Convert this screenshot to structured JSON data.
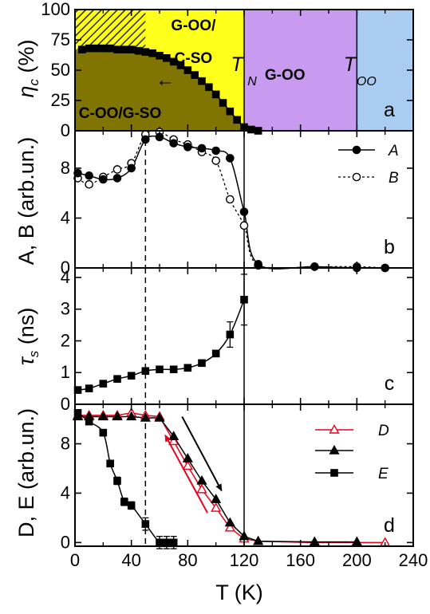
{
  "chart_data": [
    {
      "type": "line",
      "panel": "a",
      "ylabel": "η_c (%)",
      "ylim": [
        0,
        100
      ],
      "yticks": [
        0,
        25,
        50,
        75,
        100
      ],
      "shared_xlim": [
        0,
        240
      ],
      "regions": [
        {
          "label": "C-OO/G-SO",
          "color": "#7f7500"
        },
        {
          "label": "G-OO/ C-SO",
          "line1": "G-OO/",
          "line2": "C-SO",
          "color": "#ffff1c"
        },
        {
          "label": "G-OO",
          "color": "#c89bf0"
        },
        {
          "label": "",
          "color": "#a9cdf0"
        }
      ],
      "temperature_labels": [
        {
          "main": "T",
          "sub": "N",
          "x": 120
        },
        {
          "main": "T",
          "sub": "OO",
          "x": 200
        }
      ],
      "series": [
        {
          "x": [
            5,
            10,
            15,
            20,
            25,
            30,
            35,
            40,
            45,
            50,
            55,
            60,
            65,
            70,
            75,
            80,
            85,
            90,
            95,
            100,
            105,
            110,
            115,
            120,
            125,
            130
          ],
          "y": [
            67,
            68,
            68,
            68,
            68,
            67,
            67,
            67,
            66,
            65,
            64,
            62,
            60,
            57,
            54,
            50,
            46,
            41,
            36,
            30,
            23,
            16,
            9,
            3,
            1,
            0
          ]
        }
      ],
      "annotation": "←"
    },
    {
      "type": "line",
      "panel": "b",
      "ylabel": "A, B (arb.un.)",
      "ylim": [
        0,
        11
      ],
      "yticks": [
        0,
        4,
        8
      ],
      "series": [
        {
          "name": "A",
          "x": [
            2,
            10,
            20,
            30,
            40,
            50,
            60,
            70,
            80,
            90,
            100,
            110,
            120,
            130,
            170,
            200,
            220
          ],
          "y": [
            7.6,
            7.4,
            7.1,
            7.2,
            8.0,
            10.3,
            10.5,
            10.0,
            9.7,
            9.6,
            9.4,
            8.8,
            4.5,
            0.3,
            0.1,
            0.0,
            0.0
          ]
        },
        {
          "name": "B",
          "x": [
            2,
            10,
            20,
            30,
            40,
            50,
            60,
            70,
            80,
            90,
            100,
            110,
            120,
            130,
            170,
            200,
            220
          ],
          "y": [
            7.2,
            6.7,
            7.3,
            7.9,
            8.4,
            10.7,
            10.9,
            10.3,
            9.9,
            9.3,
            8.6,
            5.5,
            3.4,
            0.2,
            0.1,
            0.1,
            0.0
          ]
        }
      ]
    },
    {
      "type": "line",
      "panel": "c",
      "ylabel": "τ_s (ns)",
      "ylim": [
        0,
        4.3
      ],
      "yticks": [
        0,
        1,
        2,
        3,
        4
      ],
      "series": [
        {
          "x": [
            2,
            10,
            20,
            30,
            40,
            50,
            60,
            70,
            80,
            90,
            100,
            110,
            120
          ],
          "y": [
            0.45,
            0.5,
            0.65,
            0.8,
            0.9,
            1.05,
            1.1,
            1.1,
            1.15,
            1.3,
            1.6,
            2.2,
            3.3
          ],
          "err": [
            0.05,
            0.05,
            0.05,
            0.05,
            0.05,
            0.05,
            0.05,
            0.05,
            0.05,
            0.05,
            0.1,
            0.4,
            0.8
          ]
        }
      ]
    },
    {
      "type": "line",
      "panel": "d",
      "ylabel": "D, E (arb.un.)",
      "xlabel": "T (K)",
      "ylim": [
        -0.3,
        11.2
      ],
      "xlim": [
        0,
        240
      ],
      "yticks": [
        0,
        4,
        8
      ],
      "xticks": [
        0,
        40,
        80,
        120,
        160,
        200,
        240
      ],
      "xticklabels": [
        "0",
        "40",
        "80",
        "120",
        "160",
        "200",
        "240"
      ],
      "series": [
        {
          "name": "D",
          "color": "#e8001c",
          "x": [
            2,
            10,
            20,
            30,
            40,
            50,
            60,
            70,
            80,
            90,
            100,
            110,
            120,
            130,
            170,
            200,
            220
          ],
          "y": [
            10.3,
            10.3,
            10.3,
            10.3,
            10.5,
            10.3,
            10.2,
            8.2,
            6.2,
            4.3,
            2.8,
            1.2,
            0.3,
            0.1,
            0.0,
            0.0,
            0.0
          ]
        },
        {
          "name": "",
          "color": "#000000",
          "x": [
            2,
            10,
            20,
            30,
            40,
            50,
            60,
            70,
            80,
            90,
            100,
            110,
            120,
            130,
            170,
            200
          ],
          "y": [
            10.2,
            10.2,
            10.2,
            10.2,
            10.2,
            10.1,
            10.1,
            8.6,
            6.8,
            5.0,
            3.5,
            1.6,
            0.5,
            0.1,
            0.05,
            0.05
          ]
        },
        {
          "name": "E",
          "color": "#000000",
          "x": [
            2,
            10,
            20,
            25,
            30,
            35,
            40,
            50,
            60,
            65,
            70
          ],
          "y": [
            10.5,
            9.8,
            8.9,
            6.4,
            5.0,
            3.3,
            3.0,
            1.5,
            0.0,
            0.0,
            0.0
          ],
          "err": [
            0.2,
            0.2,
            0.2,
            0.2,
            0.3,
            0.3,
            0.3,
            0.5,
            0.5,
            0.5,
            0.5
          ]
        }
      ]
    }
  ]
}
